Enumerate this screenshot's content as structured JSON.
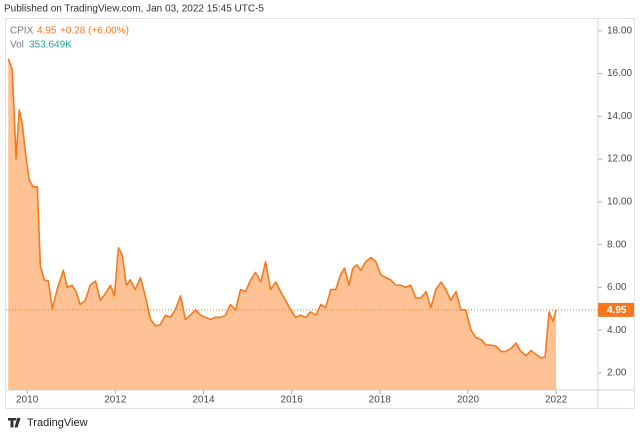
{
  "header": "Published on TradingView.com, Jan 03, 2022 15:45 UTC-5",
  "chart_data": {
    "type": "area",
    "symbol": "CPIX",
    "last": 4.95,
    "change": "+0.28 (+6.00%)",
    "volume_label": "Vol",
    "volume": "353.649K",
    "color": "#f5781e",
    "fill": "#ffbb8a",
    "x": [
      2009.57,
      2009.66,
      2009.75,
      2009.82,
      2009.89,
      2009.98,
      2010.05,
      2010.14,
      2010.23,
      2010.3,
      2010.39,
      2010.48,
      2010.57,
      2010.68,
      2010.82,
      2010.91,
      2011.02,
      2011.11,
      2011.2,
      2011.32,
      2011.43,
      2011.55,
      2011.66,
      2011.77,
      2011.89,
      2011.98,
      2012.07,
      2012.16,
      2012.25,
      2012.34,
      2012.45,
      2012.57,
      2012.68,
      2012.8,
      2012.91,
      2013.02,
      2013.14,
      2013.25,
      2013.36,
      2013.48,
      2013.59,
      2013.7,
      2013.82,
      2013.93,
      2014.05,
      2014.16,
      2014.27,
      2014.39,
      2014.5,
      2014.61,
      2014.73,
      2014.84,
      2014.95,
      2015.07,
      2015.18,
      2015.3,
      2015.41,
      2015.52,
      2015.64,
      2015.75,
      2015.86,
      2015.98,
      2016.09,
      2016.2,
      2016.32,
      2016.43,
      2016.55,
      2016.66,
      2016.77,
      2016.89,
      2017.0,
      2017.11,
      2017.2,
      2017.3,
      2017.39,
      2017.48,
      2017.57,
      2017.68,
      2017.8,
      2017.91,
      2018.02,
      2018.14,
      2018.25,
      2018.36,
      2018.48,
      2018.59,
      2018.7,
      2018.82,
      2018.93,
      2019.05,
      2019.16,
      2019.27,
      2019.39,
      2019.5,
      2019.61,
      2019.73,
      2019.84,
      2019.95,
      2020.07,
      2020.18,
      2020.3,
      2020.41,
      2020.52,
      2020.64,
      2020.75,
      2020.86,
      2020.98,
      2021.09,
      2021.2,
      2021.32,
      2021.43,
      2021.55,
      2021.66,
      2021.75,
      2021.84,
      2021.93,
      2022.0
    ],
    "values": [
      16.7,
      16.2,
      12.0,
      14.3,
      13.6,
      12.0,
      11.0,
      10.7,
      10.7,
      7.0,
      6.35,
      6.3,
      5.0,
      5.9,
      6.8,
      6.0,
      6.1,
      5.8,
      5.2,
      5.4,
      6.1,
      6.3,
      5.4,
      5.7,
      6.1,
      5.6,
      7.85,
      7.5,
      6.1,
      6.35,
      5.9,
      6.45,
      5.6,
      4.5,
      4.2,
      4.25,
      4.7,
      4.6,
      4.95,
      5.6,
      4.5,
      4.7,
      4.95,
      4.7,
      4.6,
      4.5,
      4.6,
      4.6,
      4.7,
      5.2,
      4.95,
      5.9,
      5.8,
      6.35,
      6.7,
      6.25,
      7.2,
      5.9,
      6.25,
      5.8,
      5.4,
      4.95,
      4.6,
      4.7,
      4.6,
      4.85,
      4.7,
      5.2,
      5.05,
      5.9,
      5.9,
      6.6,
      6.9,
      6.1,
      6.9,
      7.05,
      6.8,
      7.2,
      7.4,
      7.2,
      6.6,
      6.45,
      6.35,
      6.1,
      6.1,
      6.0,
      6.1,
      5.5,
      5.5,
      5.8,
      5.05,
      5.9,
      6.25,
      5.9,
      5.4,
      5.8,
      4.95,
      4.95,
      4.0,
      3.65,
      3.55,
      3.3,
      3.3,
      3.25,
      3.0,
      3.0,
      3.15,
      3.4,
      3.0,
      2.8,
      3.05,
      2.85,
      2.7,
      2.75,
      4.85,
      4.4,
      4.95
    ],
    "xlim": [
      2009.52,
      2022.95
    ],
    "ylim": [
      1.2,
      18.6
    ],
    "xticks": [
      2010,
      2012,
      2014,
      2016,
      2018,
      2020,
      2022
    ],
    "yticks": [
      {
        "value": 2,
        "label": "2.00"
      },
      {
        "value": 4,
        "label": "4.00"
      },
      {
        "value": 6,
        "label": "6.00"
      },
      {
        "value": 8,
        "label": "8.00"
      },
      {
        "value": 10,
        "label": "10.00"
      },
      {
        "value": 12,
        "label": "12.00"
      },
      {
        "value": 14,
        "label": "14.00"
      },
      {
        "value": 16,
        "label": "16.00"
      },
      {
        "value": 18,
        "label": "18.00"
      }
    ],
    "grid": false
  },
  "footer": "TradingView"
}
